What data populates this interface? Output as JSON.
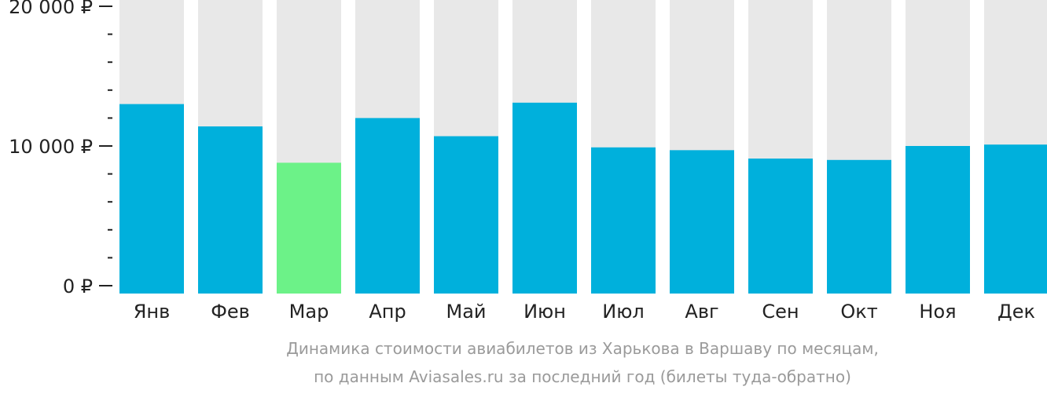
{
  "chart_data": {
    "type": "bar",
    "categories": [
      "Янв",
      "Фев",
      "Мар",
      "Апр",
      "Май",
      "Июн",
      "Июл",
      "Авг",
      "Сен",
      "Окт",
      "Ноя",
      "Дек"
    ],
    "values": [
      13000,
      11400,
      8800,
      12000,
      10700,
      13100,
      9900,
      9700,
      9100,
      9000,
      10000,
      10100
    ],
    "ylim": [
      0,
      20000
    ],
    "y_major_ticks": [
      {
        "value": 0,
        "label": "0 ₽"
      },
      {
        "value": 10000,
        "label": "10 000 ₽"
      },
      {
        "value": 20000,
        "label": "20 000 ₽"
      }
    ],
    "y_minor_step": 2000,
    "caption_lines": [
      "Динамика стоимости авиабилетов из Харькова в Варшаву по месяцам,",
      "по данным Aviasales.ru за последний год (билеты туда-обратно)"
    ],
    "highlight_index": 2,
    "colors": {
      "bar": "#00b0dc",
      "highlight": "#6cf288",
      "track": "#e8e8e8",
      "axis": "#222222",
      "caption": "#9a9a9a"
    },
    "grid": false,
    "legend": "none"
  }
}
